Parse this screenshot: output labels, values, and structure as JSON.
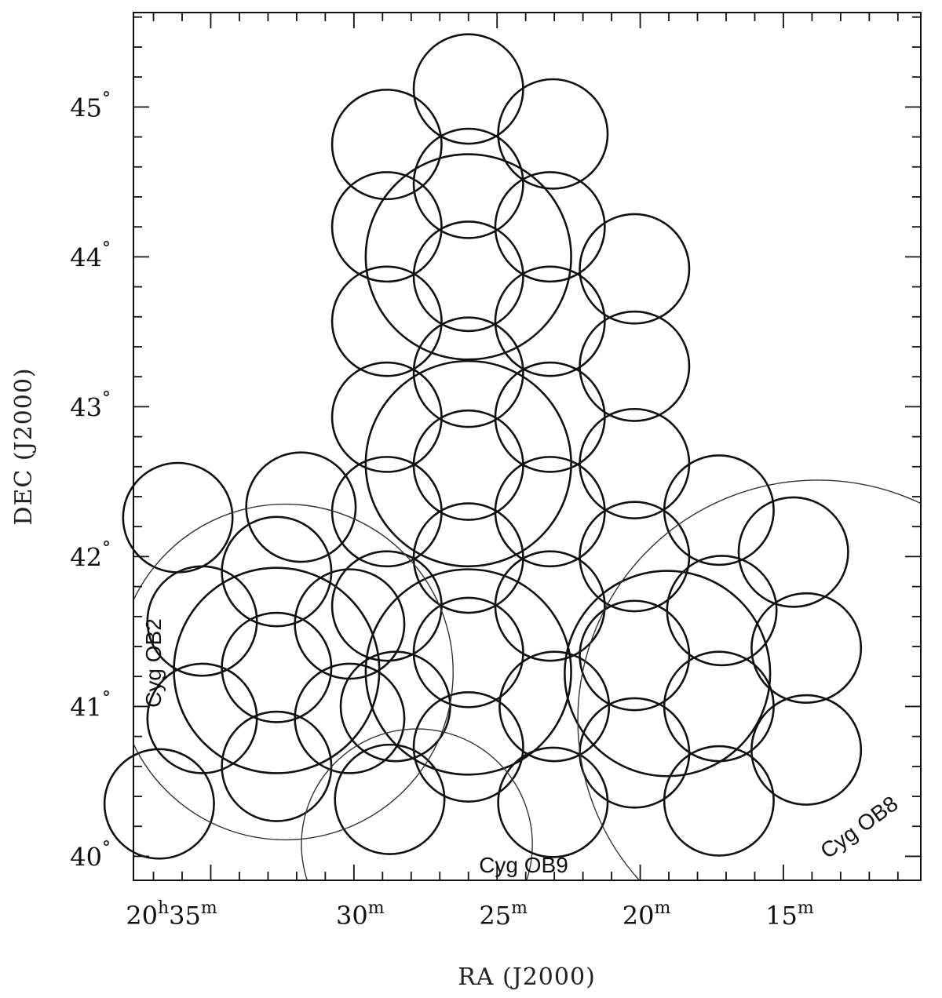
{
  "chart_data": {
    "type": "scatter",
    "xlabel": "RA (J2000)",
    "ylabel": "DEC (J2000)",
    "x_ticks": [
      {
        "value": 35,
        "main": "20",
        "sup_h": "h",
        "minutes": "35",
        "sup_m": "m"
      },
      {
        "value": 30,
        "main": "30",
        "sup_m": "m"
      },
      {
        "value": 25,
        "main": "25",
        "sup_m": "m"
      },
      {
        "value": 20,
        "main": "20",
        "sup_m": "m"
      },
      {
        "value": 15,
        "main": "15",
        "sup_m": "m"
      }
    ],
    "y_ticks": [
      {
        "value": 40,
        "label": "40",
        "deg": "°"
      },
      {
        "value": 41,
        "label": "41",
        "deg": "°"
      },
      {
        "value": 42,
        "label": "42",
        "deg": "°"
      },
      {
        "value": 43,
        "label": "43",
        "deg": "°"
      },
      {
        "value": 44,
        "label": "44",
        "deg": "°"
      },
      {
        "value": 45,
        "label": "45",
        "deg": "°"
      }
    ],
    "x_range_minutes": [
      37.7,
      10.2
    ],
    "y_range_deg": [
      39.84,
      45.63
    ],
    "small_fields": [
      [
        26,
        45.12
      ],
      [
        28.85,
        44.75
      ],
      [
        23.05,
        44.82
      ],
      [
        26,
        44.49
      ],
      [
        28.85,
        44.2
      ],
      [
        23.15,
        44.2
      ],
      [
        26,
        43.87
      ],
      [
        28.85,
        43.57
      ],
      [
        23.15,
        43.57
      ],
      [
        20.2,
        43.92
      ],
      [
        26,
        43.23
      ],
      [
        20.2,
        43.27
      ],
      [
        28.85,
        42.93
      ],
      [
        23.15,
        42.93
      ],
      [
        20.2,
        42.62
      ],
      [
        26,
        42.61
      ],
      [
        28.85,
        42.3
      ],
      [
        23.15,
        42.3
      ],
      [
        20.2,
        42.0
      ],
      [
        26,
        41.99
      ],
      [
        17.25,
        42.31
      ],
      [
        14.65,
        42.03
      ],
      [
        36.15,
        42.26
      ],
      [
        31.85,
        42.33
      ],
      [
        32.7,
        41.9
      ],
      [
        28.85,
        41.67
      ],
      [
        23.15,
        41.67
      ],
      [
        35.3,
        41.57
      ],
      [
        30.15,
        41.55
      ],
      [
        17.15,
        41.64
      ],
      [
        26,
        41.36
      ],
      [
        20.2,
        41.34
      ],
      [
        32.7,
        41.26
      ],
      [
        14.2,
        41.39
      ],
      [
        35.3,
        40.92
      ],
      [
        30.15,
        40.92
      ],
      [
        28.55,
        41.0
      ],
      [
        23.0,
        41.0
      ],
      [
        17.25,
        41.0
      ],
      [
        26,
        40.73
      ],
      [
        20.2,
        40.69
      ],
      [
        32.7,
        40.6
      ],
      [
        14.2,
        40.71
      ],
      [
        36.8,
        40.35
      ],
      [
        28.75,
        40.38
      ],
      [
        23.05,
        40.36
      ],
      [
        17.25,
        40.37
      ]
    ],
    "small_radius_deg": 0.365,
    "large_fields": [
      [
        26,
        44.0
      ],
      [
        26,
        42.62
      ],
      [
        32.7,
        41.24
      ],
      [
        26,
        41.23
      ],
      [
        19.05,
        41.22
      ]
    ],
    "large_radius_deg": 0.685,
    "associations": [
      {
        "label": "Cyg OB2",
        "ra": 32.4,
        "dec": 41.23,
        "r": 1.12
      },
      {
        "label": "Cyg OB9",
        "ra": 27.8,
        "dec": 40.08,
        "r": 0.77
      },
      {
        "label": "Cyg OB8",
        "ra": 13.8,
        "dec": 40.91,
        "r": 1.6
      }
    ]
  },
  "labels": {
    "ob2": "Cyg  OB2",
    "ob9": "Cyg OB9",
    "ob8": "Cyg OB8"
  }
}
